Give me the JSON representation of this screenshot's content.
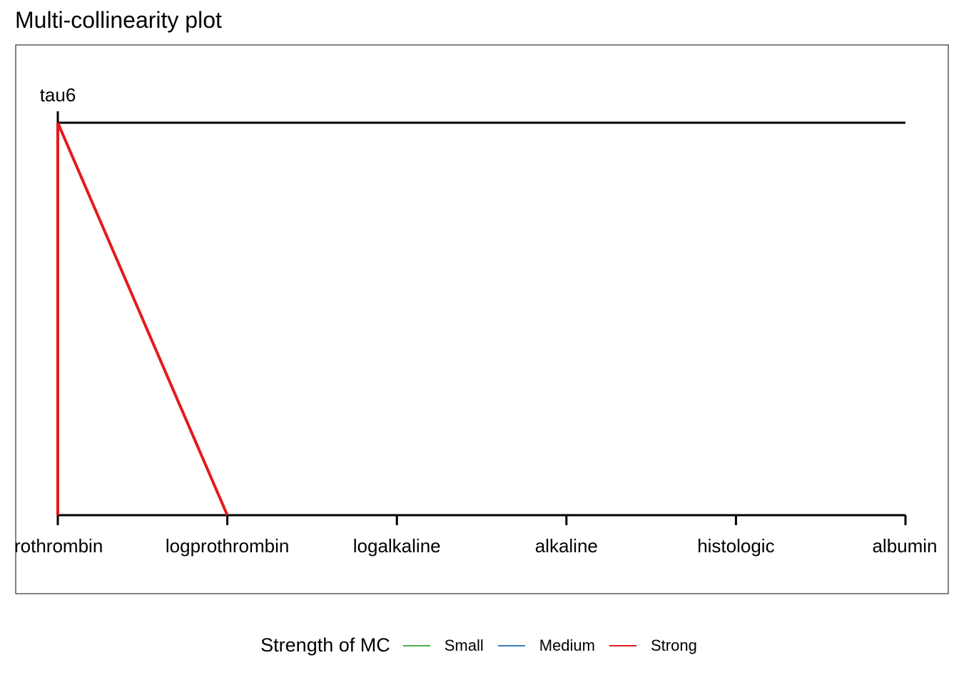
{
  "chart_data": {
    "type": "line",
    "title": "Multi-collinearity plot",
    "top_axis": {
      "categories": [
        "tau6"
      ]
    },
    "bottom_axis": {
      "categories": [
        "prothrombin",
        "logprothrombin",
        "logalkaline",
        "alkaline",
        "histologic",
        "albumin"
      ],
      "visible_labels": [
        "rothrombin",
        "logprothrombin",
        "logalkaline",
        "alkaline",
        "histologic",
        "albumin"
      ]
    },
    "links": [
      {
        "from": "tau6",
        "to": "prothrombin",
        "strength": "Strong"
      },
      {
        "from": "tau6",
        "to": "logprothrombin",
        "strength": "Strong"
      }
    ],
    "legend": {
      "title": "Strength of MC",
      "position": "bottom",
      "entries": [
        {
          "label": "Small",
          "color": "#4daf4a"
        },
        {
          "label": "Medium",
          "color": "#377eb8"
        },
        {
          "label": "Strong",
          "color": "#e41a1c"
        }
      ]
    },
    "colors": {
      "axis": "#000000",
      "panel_border": "#333333"
    }
  }
}
